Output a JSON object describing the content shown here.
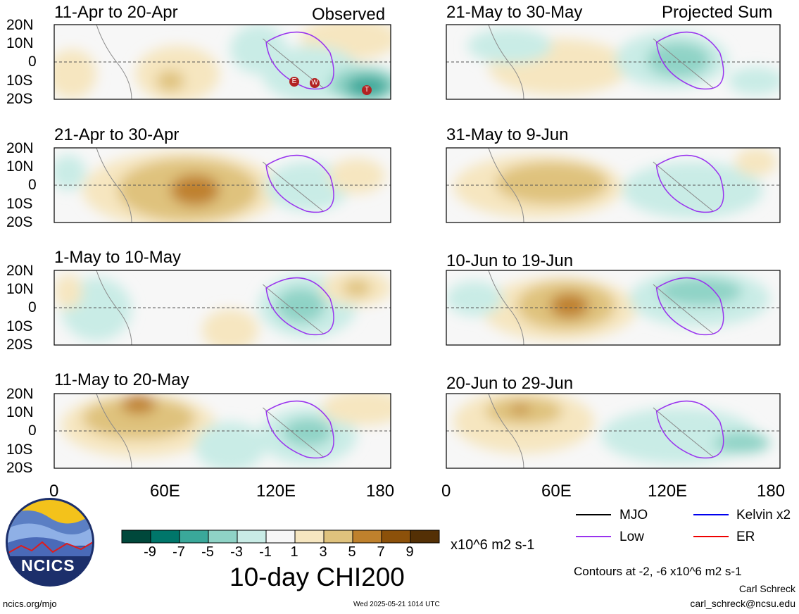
{
  "panels": {
    "p0": {
      "title": "11-Apr to 20-Apr",
      "tag": "Observed"
    },
    "p1": {
      "title": "21-May to 30-May",
      "tag": "Projected Sum"
    },
    "p2": {
      "title": "21-Apr to 30-Apr"
    },
    "p3": {
      "title": "31-May to 9-Jun"
    },
    "p4": {
      "title": "1-May to 10-May"
    },
    "p5": {
      "title": "10-Jun to 19-Jun"
    },
    "p6": {
      "title": "11-May to 20-May"
    },
    "p7": {
      "title": "20-Jun to 29-Jun"
    }
  },
  "lat_labels": [
    "20N",
    "10N",
    "0",
    "10S",
    "20S"
  ],
  "lon_labels": [
    "0",
    "60E",
    "120E",
    "180"
  ],
  "wave_markers": [
    "E",
    "W",
    "T"
  ],
  "colorbar": {
    "colors": [
      "#00483b",
      "#00766a",
      "#3aa89a",
      "#8fd3c6",
      "#c9ece6",
      "#f7f7f7",
      "#f6e6c0",
      "#dfc27d",
      "#bf812d",
      "#8c510a",
      "#543005"
    ],
    "labels": [
      "-9",
      "-7",
      "-5",
      "-3",
      "-1",
      "1",
      "3",
      "5",
      "7",
      "9"
    ],
    "units": "x10^6 m2 s-1",
    "title": "10-day CHI200"
  },
  "legend": [
    {
      "label": "MJO",
      "color": "#000000"
    },
    {
      "label": "Kelvin x2",
      "color": "#0000ee"
    },
    {
      "label": "Low",
      "color": "#9933ee"
    },
    {
      "label": "ER",
      "color": "#ee0000"
    }
  ],
  "contour_note": "Contours at -2, -6 x10^6 m2 s-1",
  "author": "Carl Schreck",
  "email": "carl_schreck@ncsu.edu",
  "url": "ncics.org/mjo",
  "timestamp": "Wed 2025-05-21 1014 UTC",
  "logo_text": "NCICS"
}
